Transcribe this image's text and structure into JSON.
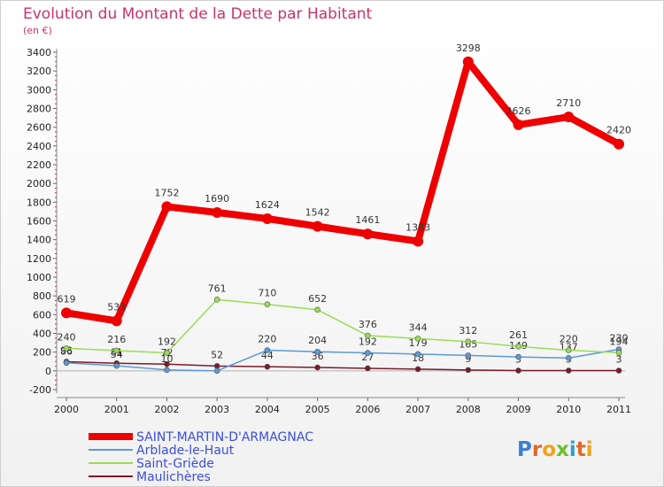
{
  "chart_data": {
    "type": "line",
    "title": "Evolution du Montant de la Dette par Habitant",
    "subtitle": "(en €)",
    "categories": [
      "2000",
      "2001",
      "2002",
      "2003",
      "2004",
      "2005",
      "2006",
      "2007",
      "2008",
      "2009",
      "2010",
      "2011"
    ],
    "ylim": [
      -200,
      3400
    ],
    "yticks": [
      -200,
      0,
      200,
      400,
      600,
      800,
      1000,
      1200,
      1400,
      1600,
      1800,
      2000,
      2200,
      2400,
      2600,
      2800,
      3000,
      3200,
      3400
    ],
    "grid": false,
    "legend_position": "bottom-left",
    "series": [
      {
        "name": "SAINT-MARTIN-D'ARMAGNAC",
        "color": "#ee0000",
        "values": [
          619,
          533,
          1752,
          1690,
          1624,
          1542,
          1461,
          1383,
          3298,
          2626,
          2710,
          2420
        ],
        "labels": [
          "619",
          "533",
          "1752",
          "1690",
          "1624",
          "1542",
          "1461",
          "1383",
          "3298",
          "2626",
          "2710",
          "2420"
        ]
      },
      {
        "name": "Arblade-le-Haut",
        "color": "#5a9ad6",
        "values": [
          86,
          54,
          10,
          0,
          220,
          204,
          192,
          179,
          165,
          149,
          137,
          230
        ],
        "labels": [
          "86",
          "54",
          "10",
          "",
          "220",
          "204",
          "192",
          "179",
          "165",
          "149",
          "137",
          "230"
        ]
      },
      {
        "name": "Saint-Griède",
        "color": "#99dd55",
        "values": [
          240,
          216,
          192,
          761,
          710,
          652,
          376,
          344,
          312,
          261,
          220,
          194
        ],
        "labels": [
          "240",
          "216",
          "192",
          "761",
          "710",
          "652",
          "376",
          "344",
          "312",
          "261",
          "220",
          "194"
        ]
      },
      {
        "name": "Maulichères",
        "color": "#7a1a2a",
        "values": [
          98,
          81,
          72,
          52,
          44,
          36,
          27,
          18,
          9,
          3,
          3,
          3
        ],
        "labels": [
          "98",
          "81",
          "72",
          "52",
          "44",
          "36",
          "27",
          "18",
          "9",
          "3",
          "3",
          "3"
        ]
      }
    ]
  },
  "logo": {
    "text": "Proxiti"
  }
}
